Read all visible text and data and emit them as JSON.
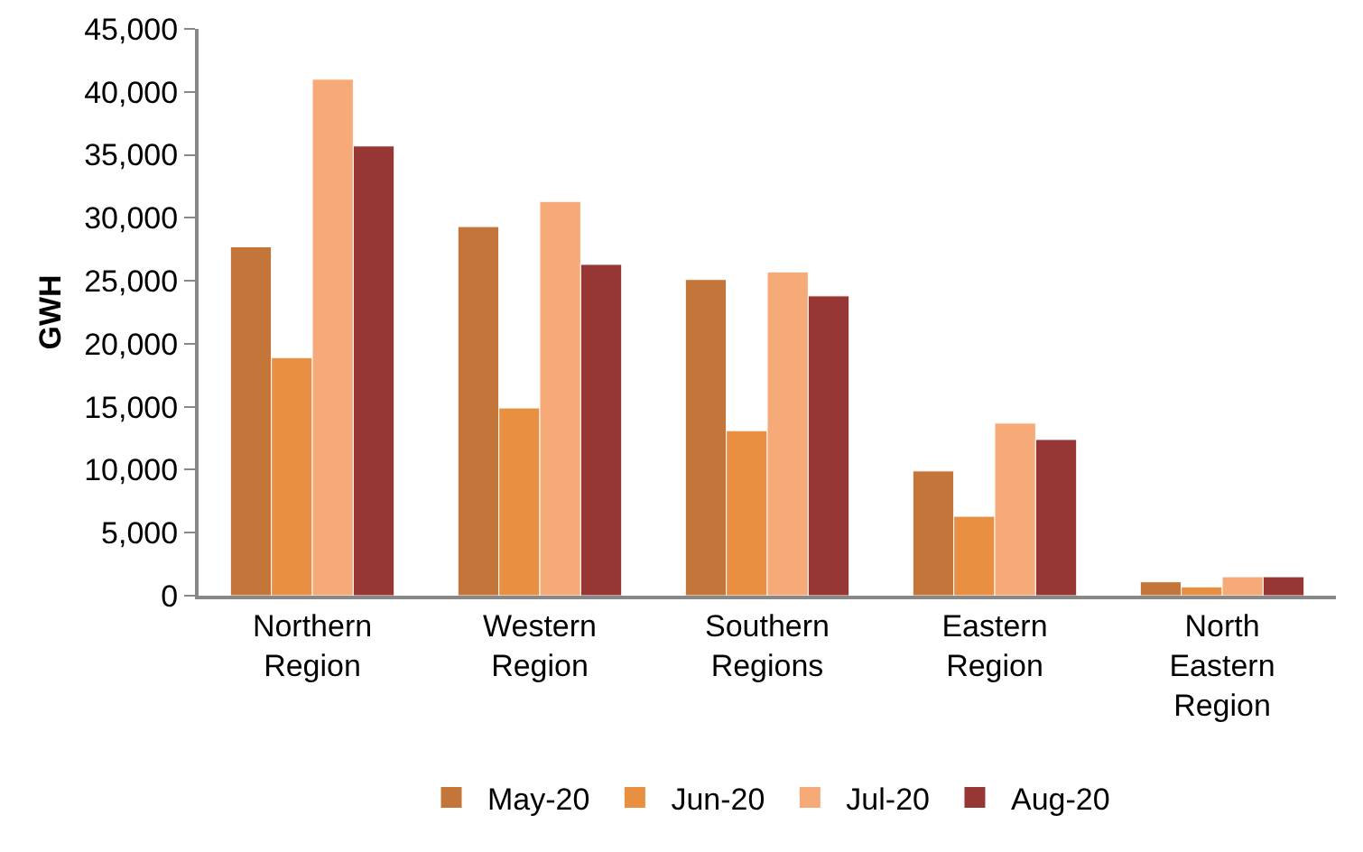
{
  "chart_data": {
    "type": "bar",
    "ylabel": "GWH",
    "categories": [
      "Northern Region",
      "Western Region",
      "Southern Regions",
      "Eastern Region",
      "North Eastern Region"
    ],
    "series": [
      {
        "name": "May-20",
        "color": "#c4763a",
        "values": [
          27700,
          29300,
          25100,
          9900,
          1100
        ]
      },
      {
        "name": "Jun-20",
        "color": "#e88f42",
        "values": [
          18900,
          14900,
          13100,
          6300,
          700
        ]
      },
      {
        "name": "Jul-20",
        "color": "#f6aa77",
        "values": [
          41000,
          31300,
          25700,
          13700,
          1500
        ]
      },
      {
        "name": "Aug-20",
        "color": "#963735",
        "values": [
          35700,
          26300,
          23800,
          12400,
          1500
        ]
      }
    ],
    "ylim": [
      0,
      45000
    ],
    "yticks": [
      {
        "value": 0,
        "label": "0"
      },
      {
        "value": 5000,
        "label": "5,000"
      },
      {
        "value": 10000,
        "label": "10,000"
      },
      {
        "value": 15000,
        "label": "15,000"
      },
      {
        "value": 20000,
        "label": "20,000"
      },
      {
        "value": 25000,
        "label": "25,000"
      },
      {
        "value": 30000,
        "label": "30,000"
      },
      {
        "value": 35000,
        "label": "35,000"
      },
      {
        "value": 40000,
        "label": "40,000"
      },
      {
        "value": 45000,
        "label": "45,000"
      }
    ],
    "grid": false,
    "legend": "bottom"
  }
}
